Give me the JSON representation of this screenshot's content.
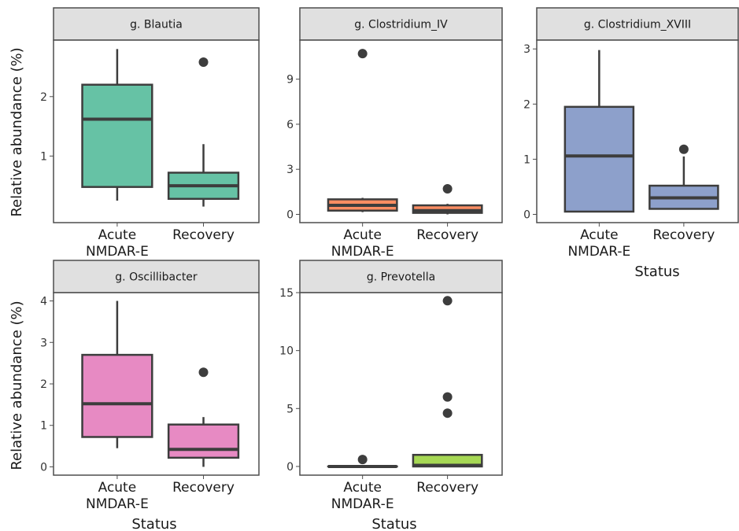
{
  "figure": {
    "y_axis_label": "Relative abundance (%)",
    "x_axis_label": "Status"
  },
  "chart_data": [
    {
      "type": "box",
      "title": "g. Blautia",
      "categories": [
        "Acute\nNMDAR-E",
        "Recovery"
      ],
      "yticks": [
        1,
        2
      ],
      "ylim": [
        -0.12,
        2.95
      ],
      "color": "#66c2a5",
      "boxes": [
        {
          "category": "Acute\nNMDAR-E",
          "whisker_low": 0.25,
          "q1": 0.48,
          "median": 1.62,
          "q3": 2.2,
          "whisker_high": 2.8,
          "outliers": []
        },
        {
          "category": "Recovery",
          "whisker_low": 0.15,
          "q1": 0.28,
          "median": 0.5,
          "q3": 0.72,
          "whisker_high": 1.2,
          "outliers": [
            2.58
          ]
        }
      ]
    },
    {
      "type": "box",
      "title": "g. Clostridium_IV",
      "categories": [
        "Acute\nNMDAR-E",
        "Recovery"
      ],
      "yticks": [
        0,
        3,
        6,
        9
      ],
      "ylim": [
        -0.55,
        11.6
      ],
      "color": "#fc8d62",
      "boxes": [
        {
          "category": "Acute\nNMDAR-E",
          "whisker_low": 0.15,
          "q1": 0.25,
          "median": 0.6,
          "q3": 1.0,
          "whisker_high": 1.1,
          "outliers": [
            10.7
          ]
        },
        {
          "category": "Recovery",
          "whisker_low": 0.0,
          "q1": 0.1,
          "median": 0.25,
          "q3": 0.6,
          "whisker_high": 0.7,
          "outliers": [
            1.7
          ]
        }
      ]
    },
    {
      "type": "box",
      "title": "g. Clostridium_XVIII",
      "categories": [
        "Acute\nNMDAR-E",
        "Recovery"
      ],
      "yticks": [
        0,
        1,
        2,
        3
      ],
      "ylim": [
        -0.15,
        3.16
      ],
      "color": "#8da0cb",
      "boxes": [
        {
          "category": "Acute\nNMDAR-E",
          "whisker_low": 0.05,
          "q1": 0.05,
          "median": 1.06,
          "q3": 1.95,
          "whisker_high": 2.98,
          "outliers": []
        },
        {
          "category": "Recovery",
          "whisker_low": 0.1,
          "q1": 0.1,
          "median": 0.3,
          "q3": 0.52,
          "whisker_high": 1.05,
          "outliers": [
            1.18
          ]
        }
      ]
    },
    {
      "type": "box",
      "title": "g. Oscillibacter",
      "categories": [
        "Acute\nNMDAR-E",
        "Recovery"
      ],
      "yticks": [
        0,
        1,
        2,
        3,
        4
      ],
      "ylim": [
        -0.2,
        4.2
      ],
      "color": "#e78ac3",
      "boxes": [
        {
          "category": "Acute\nNMDAR-E",
          "whisker_low": 0.45,
          "q1": 0.72,
          "median": 1.52,
          "q3": 2.7,
          "whisker_high": 4.0,
          "outliers": []
        },
        {
          "category": "Recovery",
          "whisker_low": 0.0,
          "q1": 0.22,
          "median": 0.42,
          "q3": 1.02,
          "whisker_high": 1.2,
          "outliers": [
            2.28
          ]
        }
      ]
    },
    {
      "type": "box",
      "title": "g. Prevotella",
      "categories": [
        "Acute\nNMDAR-E",
        "Recovery"
      ],
      "yticks": [
        0,
        5,
        10,
        15
      ],
      "ylim": [
        -0.75,
        15.0
      ],
      "color": "#a6d854",
      "boxes": [
        {
          "category": "Acute\nNMDAR-E",
          "whisker_low": 0.0,
          "q1": 0.0,
          "median": 0.0,
          "q3": 0.0,
          "whisker_high": 0.0,
          "outliers": [
            0.6
          ]
        },
        {
          "category": "Recovery",
          "whisker_low": 0.0,
          "q1": 0.0,
          "median": 0.1,
          "q3": 1.0,
          "whisker_high": 1.0,
          "outliers": [
            14.3,
            6.0,
            4.6
          ]
        }
      ]
    }
  ]
}
